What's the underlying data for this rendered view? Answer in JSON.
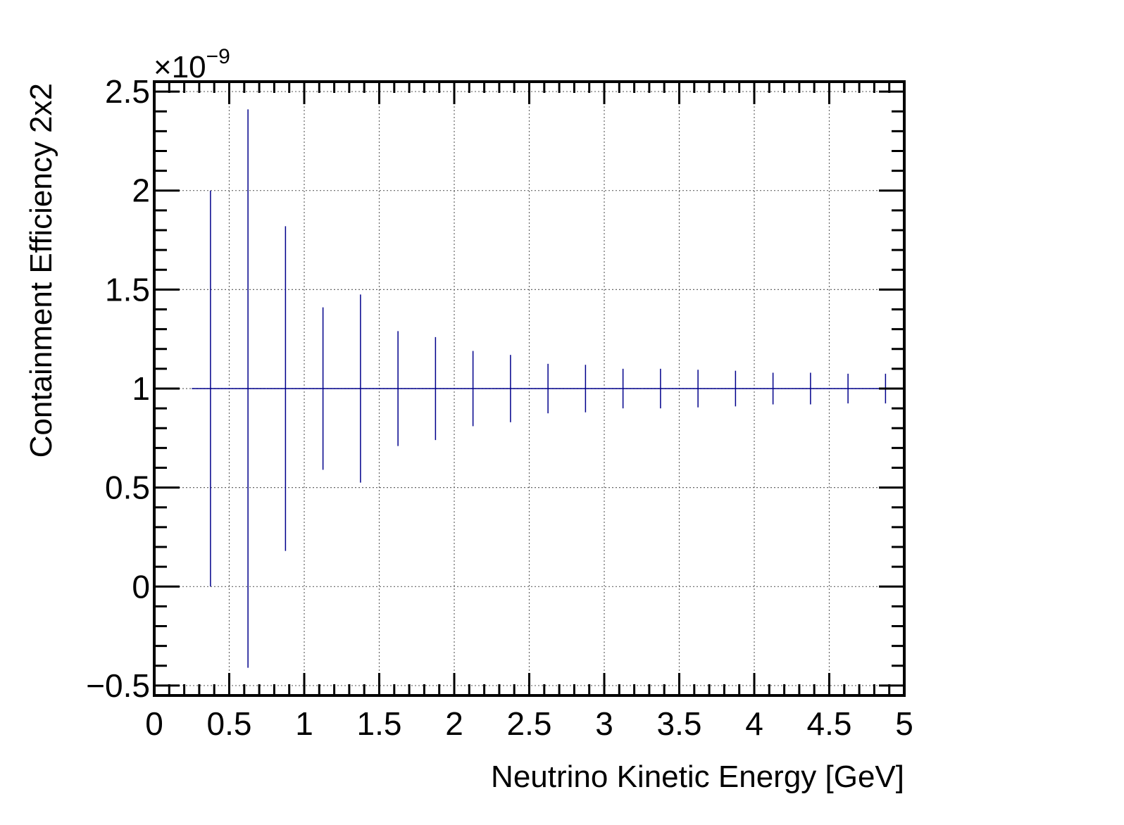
{
  "chart_data": {
    "type": "scatter",
    "title": "",
    "xlabel": "Neutrino Kinetic Energy [GeV]",
    "ylabel": "Containment Efficiency 2x2",
    "y_multiplier": "×10",
    "y_exponent": "−9",
    "xlim": [
      0,
      5
    ],
    "ylim": [
      -0.55,
      2.55
    ],
    "grid": true,
    "x_ticks": [
      0,
      0.5,
      1,
      1.5,
      2,
      2.5,
      3,
      3.5,
      4,
      4.5,
      5
    ],
    "x_tick_labels": [
      "0",
      "0.5",
      "1",
      "1.5",
      "2",
      "2.5",
      "3",
      "3.5",
      "4",
      "4.5",
      "5"
    ],
    "y_ticks": [
      -0.5,
      0,
      0.5,
      1,
      1.5,
      2,
      2.5
    ],
    "y_tick_labels": [
      "−0.5",
      "0",
      "0.5",
      "1",
      "1.5",
      "2",
      "2.5"
    ],
    "series_color": "#00008b",
    "bin_width": 0.25,
    "x": [
      0.375,
      0.625,
      0.875,
      1.125,
      1.375,
      1.625,
      1.875,
      2.125,
      2.375,
      2.625,
      2.875,
      3.125,
      3.375,
      3.625,
      3.875,
      4.125,
      4.375,
      4.625,
      4.875
    ],
    "y": [
      1,
      1,
      1,
      1,
      1,
      1,
      1,
      1,
      1,
      1,
      1,
      1,
      1,
      1,
      1,
      1,
      1,
      1,
      1
    ],
    "y_error": [
      1.0,
      1.41,
      0.82,
      0.41,
      0.475,
      0.29,
      0.26,
      0.19,
      0.17,
      0.125,
      0.12,
      0.1,
      0.1,
      0.095,
      0.09,
      0.08,
      0.08,
      0.075,
      0.075
    ]
  }
}
